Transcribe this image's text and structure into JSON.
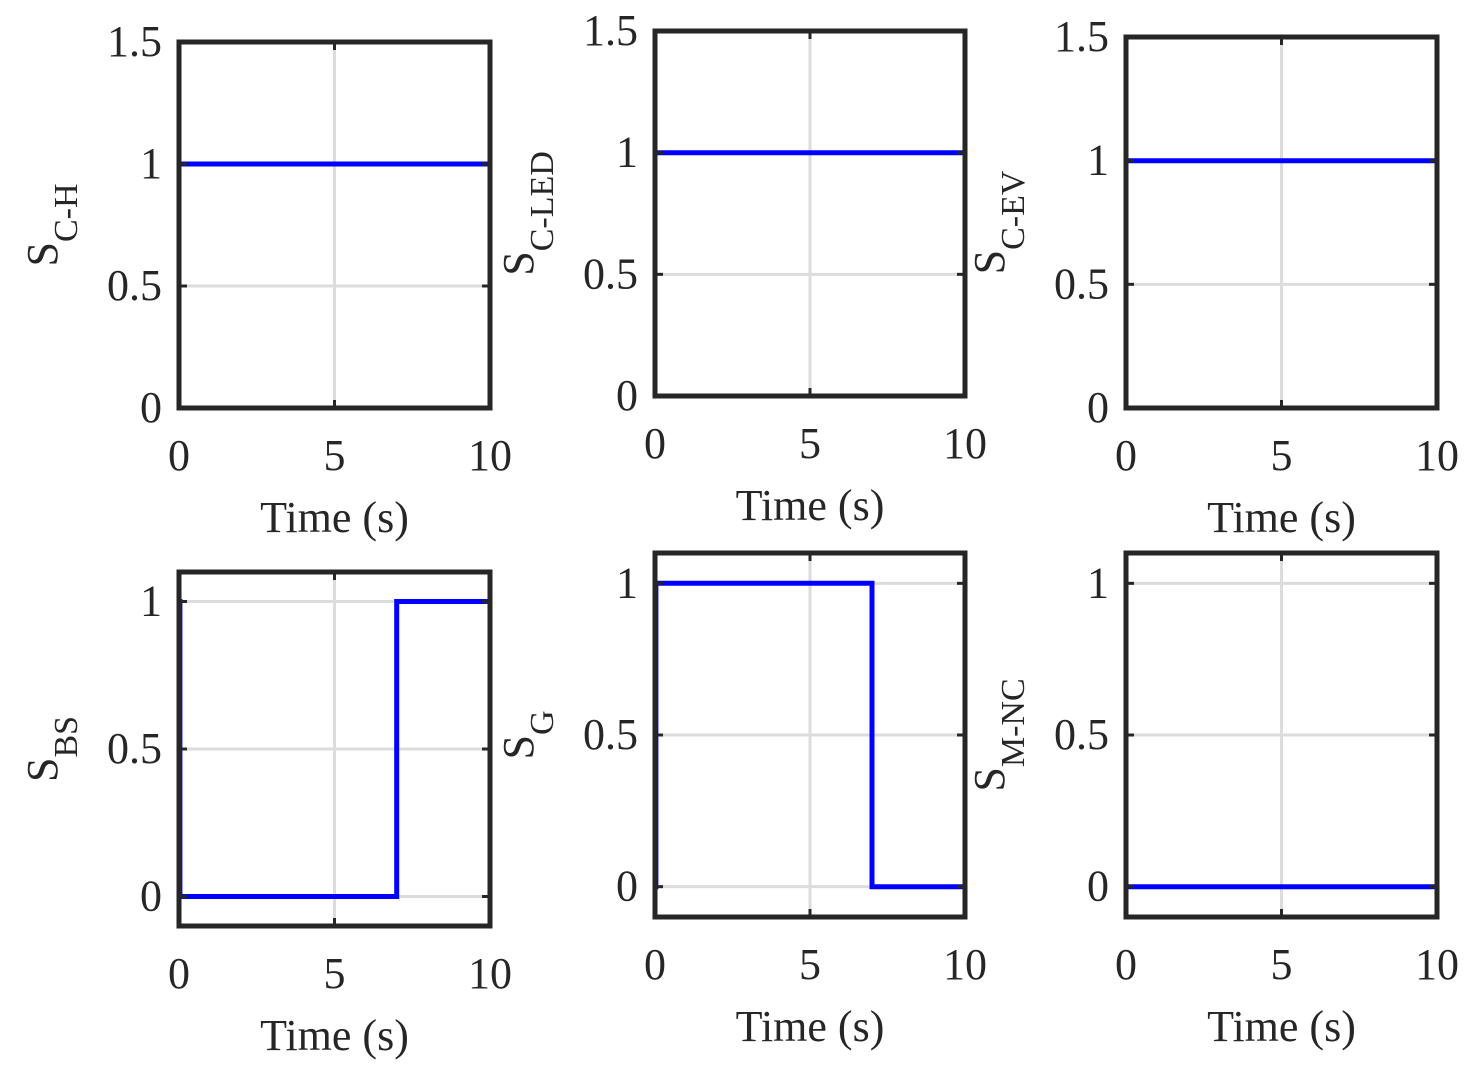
{
  "chart_data": [
    {
      "type": "line",
      "xlabel": "Time (s)",
      "ylabel": {
        "base": "S",
        "sub": "C-H"
      },
      "xlim": [
        0,
        10
      ],
      "ylim": [
        0,
        1.5
      ],
      "xticks": [
        0,
        5,
        10
      ],
      "yticks": [
        0,
        0.5,
        1,
        1.5
      ],
      "ytick_labels": [
        "0",
        "0.5",
        "1",
        "1.5"
      ],
      "grid": true,
      "series": [
        {
          "color": "#0000ff",
          "x": [
            0,
            10
          ],
          "y": [
            1,
            1
          ]
        }
      ]
    },
    {
      "type": "line",
      "xlabel": "Time (s)",
      "ylabel": {
        "base": "S",
        "sub": "C-LED"
      },
      "xlim": [
        0,
        10
      ],
      "ylim": [
        0,
        1.5
      ],
      "xticks": [
        0,
        5,
        10
      ],
      "yticks": [
        0,
        0.5,
        1,
        1.5
      ],
      "ytick_labels": [
        "0",
        "0.5",
        "1",
        "1.5"
      ],
      "grid": true,
      "series": [
        {
          "color": "#0000ff",
          "x": [
            0,
            10
          ],
          "y": [
            1,
            1
          ]
        }
      ]
    },
    {
      "type": "line",
      "xlabel": "Time (s)",
      "ylabel": {
        "base": "S",
        "sub": "C-EV"
      },
      "xlim": [
        0,
        10
      ],
      "ylim": [
        0,
        1.5
      ],
      "xticks": [
        0,
        5,
        10
      ],
      "yticks": [
        0,
        0.5,
        1,
        1.5
      ],
      "ytick_labels": [
        "0",
        "0.5",
        "1",
        "1.5"
      ],
      "grid": true,
      "series": [
        {
          "color": "#0000ff",
          "x": [
            0,
            10
          ],
          "y": [
            1,
            1
          ]
        }
      ]
    },
    {
      "type": "line",
      "xlabel": "Time (s)",
      "ylabel": {
        "base": "S",
        "sub": "BS"
      },
      "xlim": [
        0,
        10
      ],
      "ylim": [
        -0.1,
        1.1
      ],
      "xticks": [
        0,
        5,
        10
      ],
      "yticks": [
        0,
        0.5,
        1
      ],
      "ytick_labels": [
        "0",
        "0.5",
        "1"
      ],
      "grid": true,
      "series": [
        {
          "color": "#0000ff",
          "x": [
            0,
            0.03,
            0.03,
            7,
            7,
            10
          ],
          "y": [
            1,
            1,
            0,
            0,
            1,
            1
          ]
        }
      ]
    },
    {
      "type": "line",
      "xlabel": "Time (s)",
      "ylabel": {
        "base": "S",
        "sub": "G"
      },
      "xlim": [
        0,
        10
      ],
      "ylim": [
        -0.1,
        1.1
      ],
      "xticks": [
        0,
        5,
        10
      ],
      "yticks": [
        0,
        0.5,
        1
      ],
      "ytick_labels": [
        "0",
        "0.5",
        "1"
      ],
      "grid": true,
      "series": [
        {
          "color": "#0000ff",
          "x": [
            0,
            0.03,
            0.03,
            7,
            7,
            10
          ],
          "y": [
            0,
            0,
            1,
            1,
            0,
            0
          ]
        }
      ]
    },
    {
      "type": "line",
      "xlabel": "Time (s)",
      "ylabel": {
        "base": "S",
        "sub": "M-NC"
      },
      "xlim": [
        0,
        10
      ],
      "ylim": [
        -0.1,
        1.1
      ],
      "xticks": [
        0,
        5,
        10
      ],
      "yticks": [
        0,
        0.5,
        1
      ],
      "ytick_labels": [
        "0",
        "0.5",
        "1"
      ],
      "grid": true,
      "series": [
        {
          "color": "#0000ff",
          "x": [
            0,
            10
          ],
          "y": [
            0,
            0
          ]
        }
      ]
    }
  ]
}
